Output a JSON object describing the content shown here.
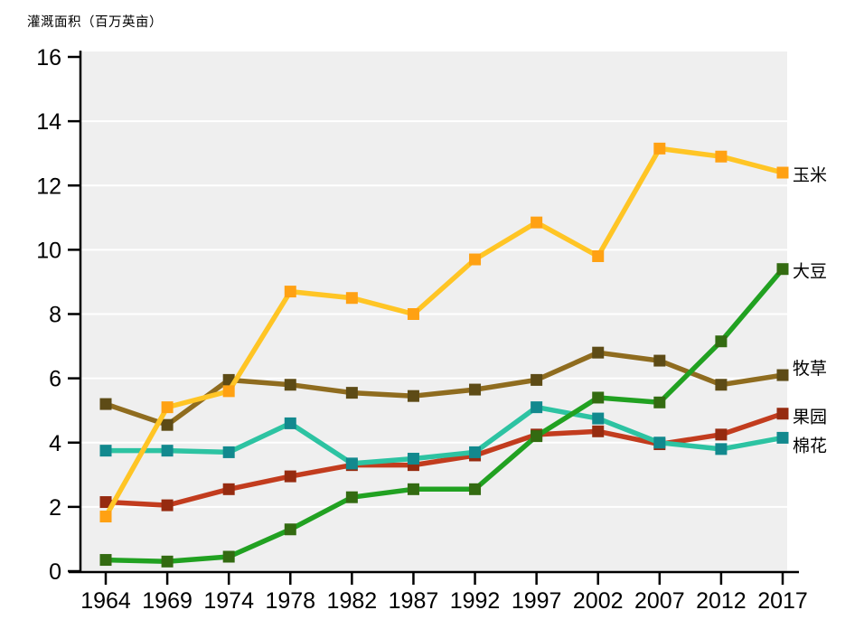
{
  "title": "灌溉面积（百万英亩）",
  "chart_data": {
    "type": "line",
    "title": "灌溉面积（百万英亩）",
    "xlabel": "",
    "ylabel": "灌溉面积（百万英亩）",
    "ylim": [
      0,
      16
    ],
    "yticks": [
      0,
      2,
      4,
      6,
      8,
      10,
      12,
      14,
      16
    ],
    "grid": true,
    "gridline_color": "#ffffff",
    "plot_background_color": "#efefef",
    "axis_color": "#000000",
    "legend_position": "right-end-labels",
    "categories": [
      "1964",
      "1969",
      "1974",
      "1978",
      "1982",
      "1987",
      "1992",
      "1997",
      "2002",
      "2007",
      "2012",
      "2017"
    ],
    "series": [
      {
        "name": "玉米",
        "values": [
          1.7,
          5.1,
          5.6,
          8.7,
          8.5,
          8.0,
          9.7,
          10.85,
          9.8,
          13.15,
          12.9,
          12.4
        ],
        "line_color": "#ffc525",
        "marker_color": "#ffa113",
        "label_dy": 2
      },
      {
        "name": "大豆",
        "values": [
          0.35,
          0.3,
          0.45,
          1.3,
          2.3,
          2.55,
          2.55,
          4.2,
          5.4,
          5.25,
          7.15,
          9.4
        ],
        "line_color": "#21a121",
        "marker_color": "#336b11",
        "label_dy": 2
      },
      {
        "name": "牧草",
        "values": [
          5.2,
          4.55,
          5.95,
          5.8,
          5.55,
          5.45,
          5.65,
          5.95,
          6.8,
          6.55,
          5.8,
          6.1
        ],
        "line_color": "#8f6c1f",
        "marker_color": "#5d4b16",
        "label_dy": -8
      },
      {
        "name": "果园",
        "values": [
          2.15,
          2.05,
          2.55,
          2.95,
          3.3,
          3.3,
          3.6,
          4.25,
          4.35,
          3.95,
          4.25,
          4.9
        ],
        "line_color": "#c23c1e",
        "marker_color": "#962b10",
        "label_dy": 3
      },
      {
        "name": "棉花",
        "values": [
          3.75,
          3.75,
          3.7,
          4.6,
          3.35,
          3.5,
          3.7,
          5.1,
          4.75,
          4.0,
          3.8,
          4.15
        ],
        "line_color": "#2dc3a2",
        "marker_color": "#12898e",
        "label_dy": 8
      }
    ]
  }
}
